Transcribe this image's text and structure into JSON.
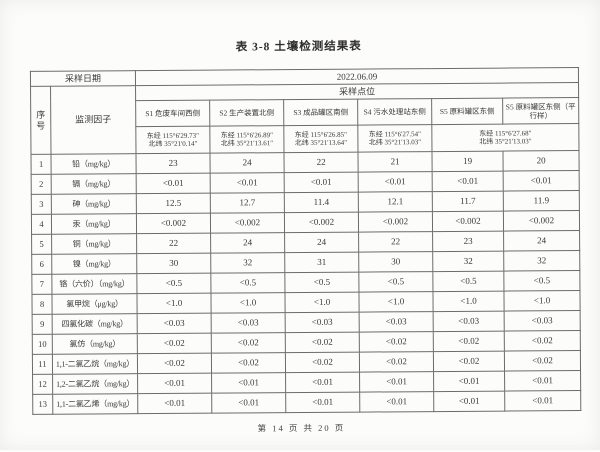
{
  "page": {
    "title": "表 3-8  土壤检测结果表",
    "footer": "第 14 页 共 20 页"
  },
  "table": {
    "sampling_date_label": "采样日期",
    "sampling_date": "2022.06.09",
    "sampling_point_label": "采样点位",
    "serial_label": "序号",
    "factor_label": "监测因子",
    "sites": [
      {
        "name": "S1 危废车间西侧",
        "lon": "东经 115°6'29.73\"",
        "lat": "北纬 35°21'0.14\""
      },
      {
        "name": "S2 生产装置北侧",
        "lon": "东经 115°6'26.89\"",
        "lat": "北纬 35°21'13.61\""
      },
      {
        "name": "S3 成品罐区南侧",
        "lon": "东经 115°6'26.85\"",
        "lat": "北纬 35°21'13.64\""
      },
      {
        "name": "S4 污水处理站东侧",
        "lon": "东经 115°6'27.54\"",
        "lat": "北纬 35°21'13.03\""
      },
      {
        "name": "S5 原料罐区东侧",
        "lon": "东经 115°6'27.68\"",
        "lat": "北纬 35°21'13.03\"",
        "coord_colspan": 2
      },
      {
        "name": "S5 原料罐区东侧（平行样）"
      }
    ],
    "rows": [
      {
        "no": "1",
        "factor": "铅（mg/kg）",
        "values": [
          "23",
          "24",
          "22",
          "21",
          "19",
          "20"
        ]
      },
      {
        "no": "2",
        "factor": "镉（mg/kg）",
        "values": [
          "<0.01",
          "<0.01",
          "<0.01",
          "<0.01",
          "<0.01",
          "<0.01"
        ]
      },
      {
        "no": "3",
        "factor": "砷（mg/kg）",
        "values": [
          "12.5",
          "12.7",
          "11.4",
          "12.1",
          "11.7",
          "11.9"
        ]
      },
      {
        "no": "4",
        "factor": "汞（mg/kg）",
        "values": [
          "<0.002",
          "<0.002",
          "<0.002",
          "<0.002",
          "<0.002",
          "<0.002"
        ]
      },
      {
        "no": "5",
        "factor": "铜（mg/kg）",
        "values": [
          "22",
          "24",
          "24",
          "22",
          "23",
          "24"
        ]
      },
      {
        "no": "6",
        "factor": "镍（mg/kg）",
        "values": [
          "30",
          "32",
          "31",
          "30",
          "32",
          "32"
        ]
      },
      {
        "no": "7",
        "factor": "铬（六价）（mg/kg）",
        "values": [
          "<0.5",
          "<0.5",
          "<0.5",
          "<0.5",
          "<0.5",
          "<0.5"
        ]
      },
      {
        "no": "8",
        "factor": "氯甲烷（μg/kg）",
        "values": [
          "<1.0",
          "<1.0",
          "<1.0",
          "<1.0",
          "<1.0",
          "<1.0"
        ]
      },
      {
        "no": "9",
        "factor": "四氯化碳（mg/kg）",
        "values": [
          "<0.03",
          "<0.03",
          "<0.03",
          "<0.03",
          "<0.03",
          "<0.03"
        ]
      },
      {
        "no": "10",
        "factor": "氯仿（mg/kg）",
        "values": [
          "<0.02",
          "<0.02",
          "<0.02",
          "<0.02",
          "<0.02",
          "<0.02"
        ]
      },
      {
        "no": "11",
        "factor": "1,1-二氯乙烷（mg/kg）",
        "values": [
          "<0.02",
          "<0.02",
          "<0.02",
          "<0.02",
          "<0.02",
          "<0.02"
        ]
      },
      {
        "no": "12",
        "factor": "1,2-二氯乙烷（mg/kg）",
        "values": [
          "<0.01",
          "<0.01",
          "<0.01",
          "<0.01",
          "<0.01",
          "<0.01"
        ]
      },
      {
        "no": "13",
        "factor": "1,1-二氯乙烯（mg/kg）",
        "values": [
          "<0.01",
          "<0.01",
          "<0.01",
          "<0.01",
          "<0.01",
          "<0.01"
        ]
      }
    ]
  }
}
